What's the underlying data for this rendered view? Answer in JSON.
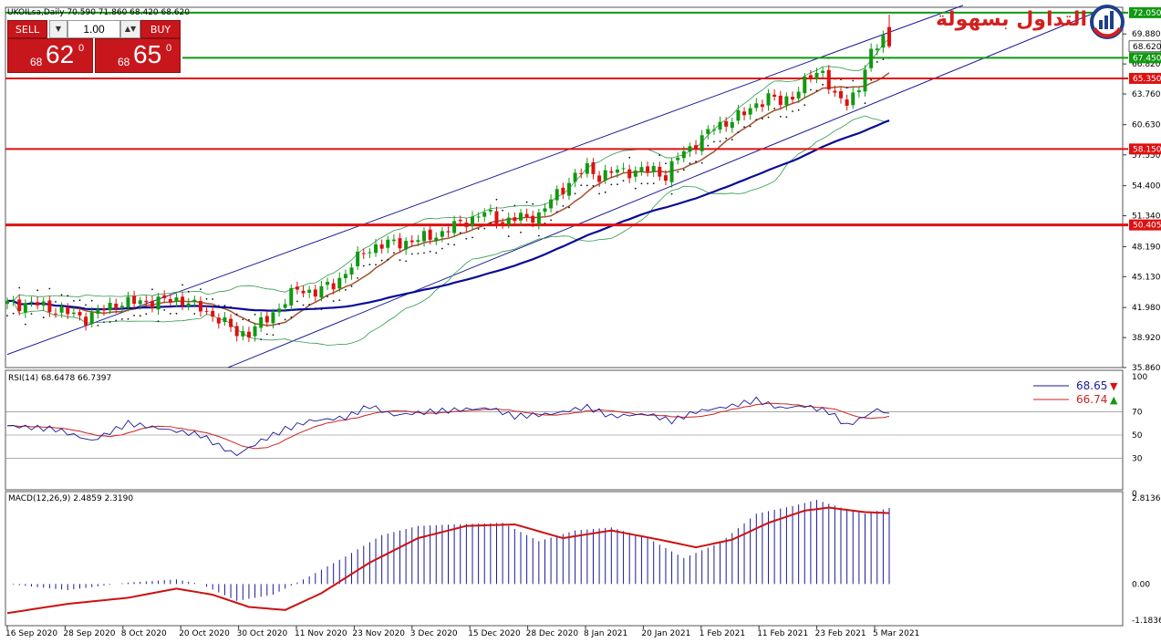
{
  "symbol_header": "UKOILsa,Daily  70.590 71.860 68.420 68.620",
  "trade_panel": {
    "sell_label": "SELL",
    "buy_label": "BUY",
    "lot": "1.00",
    "sell_price_small": "68",
    "sell_price_big": "62",
    "sell_price_sup": "0",
    "buy_price_small": "68",
    "buy_price_big": "65",
    "buy_price_sup": "0"
  },
  "logo": {
    "text": "التداول بسهولة"
  },
  "colors": {
    "bull": "#119911",
    "bear": "#dd1111",
    "hline_red": "#dd1111",
    "hline_green": "#119911",
    "ma_navy": "#0a0a96",
    "ma_brown": "#a0522d",
    "bollinger": "#2e9b4a",
    "channel": "#1a1a9a",
    "rsi_line": "#1a1a9a",
    "rsi_signal": "#cc2222",
    "macd_hist": "#1a1a9a",
    "macd_signal": "#cc1111"
  },
  "price_axis": {
    "ticks": [
      "69.880",
      "66.820",
      "63.760",
      "60.630",
      "57.550",
      "54.400",
      "51.340",
      "48.190",
      "45.130",
      "41.980",
      "38.920",
      "35.860"
    ],
    "current_price_label": "68.620"
  },
  "horizontal_lines": [
    {
      "price": 72.05,
      "label": "72.050",
      "color": "green"
    },
    {
      "price": 67.45,
      "label": "67.450",
      "color": "green"
    },
    {
      "price": 65.35,
      "label": "65.350",
      "color": "red"
    },
    {
      "price": 58.15,
      "label": "58.150",
      "color": "red"
    },
    {
      "price": 50.405,
      "label": "50.405",
      "color": "red"
    }
  ],
  "rsi": {
    "title": "RSI(14) 68.6478 66.7397",
    "value_main": "68.65",
    "value_main_arrow": "▼",
    "value_signal": "66.74",
    "value_signal_arrow": "▲",
    "axis_ticks": [
      "100",
      "70",
      "50",
      "30",
      "0"
    ]
  },
  "macd": {
    "title": "MACD(12,26,9) 2.4859 2.3190",
    "axis_ticks": [
      "2.8136",
      "0.00",
      "-1.1836"
    ]
  },
  "date_axis": [
    "16 Sep 2020",
    "28 Sep 2020",
    "8 Oct 2020",
    "20 Oct 2020",
    "30 Oct 2020",
    "11 Nov 2020",
    "23 Nov 2020",
    "3 Dec 2020",
    "15 Dec 2020",
    "28 Dec 2020",
    "8 Jan 2021",
    "20 Jan 2021",
    "1 Feb 2021",
    "11 Feb 2021",
    "23 Feb 2021",
    "5 Mar 2021"
  ],
  "chart_data": {
    "type": "candlestick",
    "title": "UKOILsa,Daily",
    "ylim": [
      35.86,
      72.6
    ],
    "anchors": [
      {
        "i": 0,
        "v": 42.4
      },
      {
        "i": 5,
        "v": 42.3
      },
      {
        "i": 10,
        "v": 41.4
      },
      {
        "i": 13,
        "v": 40.9
      },
      {
        "i": 18,
        "v": 42.4
      },
      {
        "i": 24,
        "v": 42.6
      },
      {
        "i": 29,
        "v": 42.8
      },
      {
        "i": 32,
        "v": 41.8
      },
      {
        "i": 35,
        "v": 40.9
      },
      {
        "i": 38,
        "v": 39.3
      },
      {
        "i": 40,
        "v": 39.5
      },
      {
        "i": 43,
        "v": 40.8
      },
      {
        "i": 46,
        "v": 42.7
      },
      {
        "i": 48,
        "v": 43.8
      },
      {
        "i": 51,
        "v": 43.6
      },
      {
        "i": 54,
        "v": 44.3
      },
      {
        "i": 56,
        "v": 45.6
      },
      {
        "i": 59,
        "v": 47.6
      },
      {
        "i": 61,
        "v": 48.3
      },
      {
        "i": 65,
        "v": 48.6
      },
      {
        "i": 68,
        "v": 48.9
      },
      {
        "i": 72,
        "v": 49.6
      },
      {
        "i": 75,
        "v": 50.6
      },
      {
        "i": 79,
        "v": 51.6
      },
      {
        "i": 82,
        "v": 50.8
      },
      {
        "i": 86,
        "v": 51.2
      },
      {
        "i": 88,
        "v": 51.4
      },
      {
        "i": 91,
        "v": 53.6
      },
      {
        "i": 94,
        "v": 55.4
      },
      {
        "i": 96,
        "v": 56.2
      },
      {
        "i": 98,
        "v": 55.4
      },
      {
        "i": 101,
        "v": 55.9
      },
      {
        "i": 104,
        "v": 55.9
      },
      {
        "i": 107,
        "v": 56.0
      },
      {
        "i": 109,
        "v": 55.4
      },
      {
        "i": 111,
        "v": 57.3
      },
      {
        "i": 114,
        "v": 58.8
      },
      {
        "i": 117,
        "v": 60.3
      },
      {
        "i": 120,
        "v": 61.2
      },
      {
        "i": 122,
        "v": 61.7
      },
      {
        "i": 124,
        "v": 62.8
      },
      {
        "i": 126,
        "v": 63.4
      },
      {
        "i": 128,
        "v": 62.9
      },
      {
        "i": 131,
        "v": 64.1
      },
      {
        "i": 133,
        "v": 65.6
      },
      {
        "i": 135,
        "v": 66.2
      },
      {
        "i": 137,
        "v": 63.3
      },
      {
        "i": 139,
        "v": 62.9
      },
      {
        "i": 141,
        "v": 64.6
      },
      {
        "i": 143,
        "v": 67.7
      },
      {
        "i": 145,
        "v": 69.8
      },
      {
        "i": 146,
        "v": 68.6
      }
    ],
    "last_bar": {
      "open": 70.59,
      "high": 71.86,
      "low": 68.42,
      "close": 68.62
    },
    "rsi_anchors": [
      {
        "i": 0,
        "v": 58
      },
      {
        "i": 8,
        "v": 55
      },
      {
        "i": 14,
        "v": 45
      },
      {
        "i": 20,
        "v": 60
      },
      {
        "i": 26,
        "v": 55
      },
      {
        "i": 32,
        "v": 50
      },
      {
        "i": 36,
        "v": 38
      },
      {
        "i": 38,
        "v": 33
      },
      {
        "i": 42,
        "v": 45
      },
      {
        "i": 46,
        "v": 55
      },
      {
        "i": 50,
        "v": 62
      },
      {
        "i": 56,
        "v": 65
      },
      {
        "i": 60,
        "v": 75
      },
      {
        "i": 64,
        "v": 67
      },
      {
        "i": 70,
        "v": 70
      },
      {
        "i": 76,
        "v": 72
      },
      {
        "i": 80,
        "v": 73
      },
      {
        "i": 84,
        "v": 66
      },
      {
        "i": 90,
        "v": 68
      },
      {
        "i": 96,
        "v": 74
      },
      {
        "i": 100,
        "v": 66
      },
      {
        "i": 106,
        "v": 68
      },
      {
        "i": 110,
        "v": 62
      },
      {
        "i": 114,
        "v": 70
      },
      {
        "i": 120,
        "v": 75
      },
      {
        "i": 124,
        "v": 80
      },
      {
        "i": 128,
        "v": 73
      },
      {
        "i": 132,
        "v": 75
      },
      {
        "i": 136,
        "v": 70
      },
      {
        "i": 139,
        "v": 58
      },
      {
        "i": 142,
        "v": 66
      },
      {
        "i": 144,
        "v": 72
      },
      {
        "i": 146,
        "v": 68.65
      }
    ],
    "macd_anchors": [
      {
        "i": 0,
        "v": 0
      },
      {
        "i": 10,
        "v": -0.2
      },
      {
        "i": 20,
        "v": 0.05
      },
      {
        "i": 28,
        "v": 0.15
      },
      {
        "i": 32,
        "v": 0
      },
      {
        "i": 38,
        "v": -0.55
      },
      {
        "i": 44,
        "v": -0.35
      },
      {
        "i": 50,
        "v": 0.25
      },
      {
        "i": 56,
        "v": 0.9
      },
      {
        "i": 62,
        "v": 1.6
      },
      {
        "i": 68,
        "v": 1.9
      },
      {
        "i": 74,
        "v": 1.95
      },
      {
        "i": 82,
        "v": 2.0
      },
      {
        "i": 88,
        "v": 1.4
      },
      {
        "i": 94,
        "v": 1.75
      },
      {
        "i": 100,
        "v": 1.85
      },
      {
        "i": 106,
        "v": 1.5
      },
      {
        "i": 112,
        "v": 0.85
      },
      {
        "i": 118,
        "v": 1.35
      },
      {
        "i": 124,
        "v": 2.3
      },
      {
        "i": 130,
        "v": 2.55
      },
      {
        "i": 134,
        "v": 2.75
      },
      {
        "i": 138,
        "v": 2.5
      },
      {
        "i": 142,
        "v": 2.3
      },
      {
        "i": 146,
        "v": 2.4859
      }
    ],
    "macd_signal_anchors": [
      {
        "i": 0,
        "v": -0.95
      },
      {
        "i": 10,
        "v": -0.65
      },
      {
        "i": 20,
        "v": -0.45
      },
      {
        "i": 28,
        "v": -0.15
      },
      {
        "i": 34,
        "v": -0.35
      },
      {
        "i": 40,
        "v": -0.75
      },
      {
        "i": 46,
        "v": -0.85
      },
      {
        "i": 52,
        "v": -0.3
      },
      {
        "i": 60,
        "v": 0.7
      },
      {
        "i": 68,
        "v": 1.5
      },
      {
        "i": 76,
        "v": 1.9
      },
      {
        "i": 84,
        "v": 1.95
      },
      {
        "i": 92,
        "v": 1.5
      },
      {
        "i": 100,
        "v": 1.75
      },
      {
        "i": 108,
        "v": 1.45
      },
      {
        "i": 114,
        "v": 1.2
      },
      {
        "i": 120,
        "v": 1.45
      },
      {
        "i": 126,
        "v": 2.0
      },
      {
        "i": 132,
        "v": 2.4
      },
      {
        "i": 136,
        "v": 2.5
      },
      {
        "i": 142,
        "v": 2.35
      },
      {
        "i": 146,
        "v": 2.319
      }
    ],
    "macd_range": [
      -1.1836,
      2.8136
    ]
  }
}
